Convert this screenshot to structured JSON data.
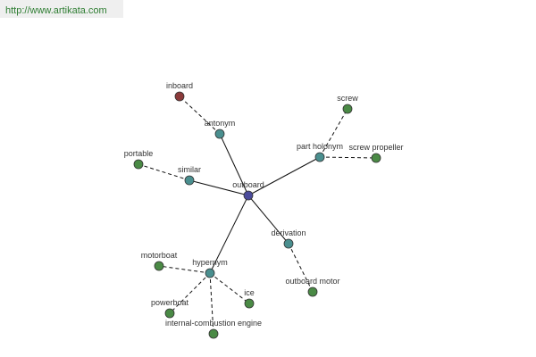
{
  "watermark": "http://www.artikata.com",
  "nodes": [
    {
      "label": "outboard"
    },
    {
      "label": "antonym"
    },
    {
      "label": "inboard"
    },
    {
      "label": "part holonym"
    },
    {
      "label": "screw"
    },
    {
      "label": "screw propeller"
    },
    {
      "label": "similar"
    },
    {
      "label": "portable"
    },
    {
      "label": "derivation"
    },
    {
      "label": "outboard motor"
    },
    {
      "label": "hypernym"
    },
    {
      "label": "motorboat"
    },
    {
      "label": "powerboat"
    },
    {
      "label": "internal-combustion engine"
    },
    {
      "label": "ice"
    }
  ]
}
